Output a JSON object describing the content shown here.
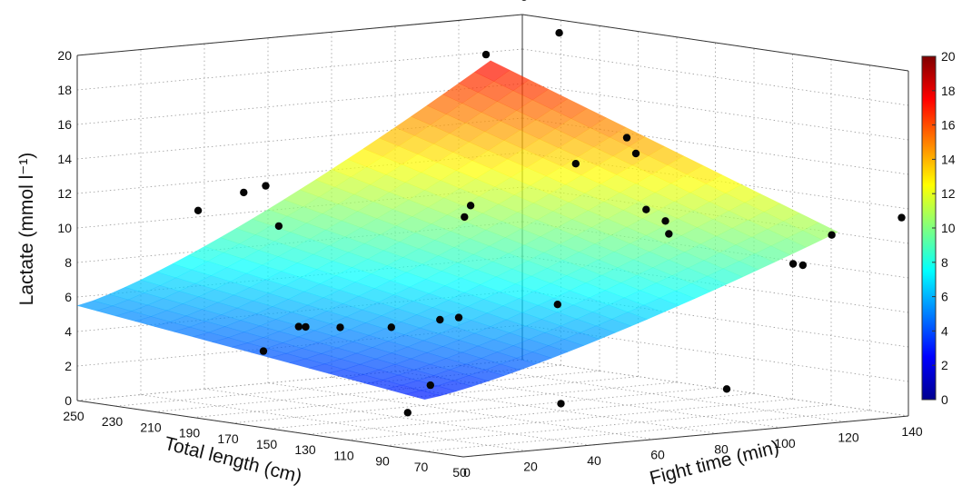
{
  "chart_data": {
    "type": "surface3d",
    "title": "",
    "axes": {
      "z": {
        "label": "Lactate (mmol l⁻¹)",
        "range": [
          0,
          20
        ],
        "ticks": [
          0,
          2,
          4,
          6,
          8,
          10,
          12,
          14,
          16,
          18,
          20
        ]
      },
      "length": {
        "label": "Total length (cm)",
        "range": [
          50,
          250
        ],
        "ticks": [
          50,
          70,
          90,
          110,
          130,
          150,
          170,
          190,
          210,
          230,
          250
        ]
      },
      "time": {
        "label": "Fight time (min)",
        "range": [
          0,
          140
        ],
        "ticks": [
          0,
          20,
          40,
          60,
          80,
          100,
          120,
          140
        ]
      }
    },
    "surface": {
      "length_range": [
        70,
        250
      ],
      "time_range": [
        0,
        130
      ],
      "corner_values": {
        "short_short": 3.0,
        "long_short": 5.5,
        "short_long": 10.5,
        "long_long": 17.5
      }
    },
    "points": [
      {
        "length": 245,
        "time": 35,
        "lactate": 10.5
      },
      {
        "length": 210,
        "time": 35,
        "lactate": 12.5
      },
      {
        "length": 200,
        "time": 22,
        "lactate": 12.5
      },
      {
        "length": 195,
        "time": 30,
        "lactate": 10.5
      },
      {
        "length": 160,
        "time": 15,
        "lactate": 5.5
      },
      {
        "length": 158,
        "time": 16,
        "lactate": 5.5
      },
      {
        "length": 150,
        "time": 22,
        "lactate": 5.5
      },
      {
        "length": 170,
        "time": 10,
        "lactate": 4.0
      },
      {
        "length": 100,
        "time": 20,
        "lactate": 3.0
      },
      {
        "length": 120,
        "time": 25,
        "lactate": 1.0
      },
      {
        "length": 110,
        "time": 35,
        "lactate": 6.5
      },
      {
        "length": 128,
        "time": 40,
        "lactate": 6.0
      },
      {
        "length": 140,
        "time": 32,
        "lactate": 5.5
      },
      {
        "length": 140,
        "time": 55,
        "lactate": 11.5
      },
      {
        "length": 145,
        "time": 60,
        "lactate": 12.0
      },
      {
        "length": 100,
        "time": 60,
        "lactate": 7.0
      },
      {
        "length": 90,
        "time": 55,
        "lactate": 1.5
      },
      {
        "length": 170,
        "time": 80,
        "lactate": 20.0
      },
      {
        "length": 175,
        "time": 95,
        "lactate": 23.0
      },
      {
        "length": 165,
        "time": 100,
        "lactate": 21.0
      },
      {
        "length": 140,
        "time": 90,
        "lactate": 14.0
      },
      {
        "length": 130,
        "time": 100,
        "lactate": 15.5
      },
      {
        "length": 110,
        "time": 100,
        "lactate": 11.0
      },
      {
        "length": 120,
        "time": 100,
        "lactate": 11.5
      },
      {
        "length": 100,
        "time": 95,
        "lactate": 10.5
      },
      {
        "length": 150,
        "time": 115,
        "lactate": 14.0
      },
      {
        "length": 70,
        "time": 95,
        "lactate": 2.0
      },
      {
        "length": 65,
        "time": 125,
        "lactate": 10.5
      },
      {
        "length": 80,
        "time": 125,
        "lactate": 8.5
      },
      {
        "length": 85,
        "time": 125,
        "lactate": 8.5
      },
      {
        "length": 70,
        "time": 150,
        "lactate": 11.0
      }
    ],
    "colorbar": {
      "range": [
        0,
        20
      ],
      "ticks": [
        0,
        2,
        4,
        6,
        8,
        10,
        12,
        14,
        16,
        18,
        20
      ],
      "colormap": "jet"
    }
  }
}
